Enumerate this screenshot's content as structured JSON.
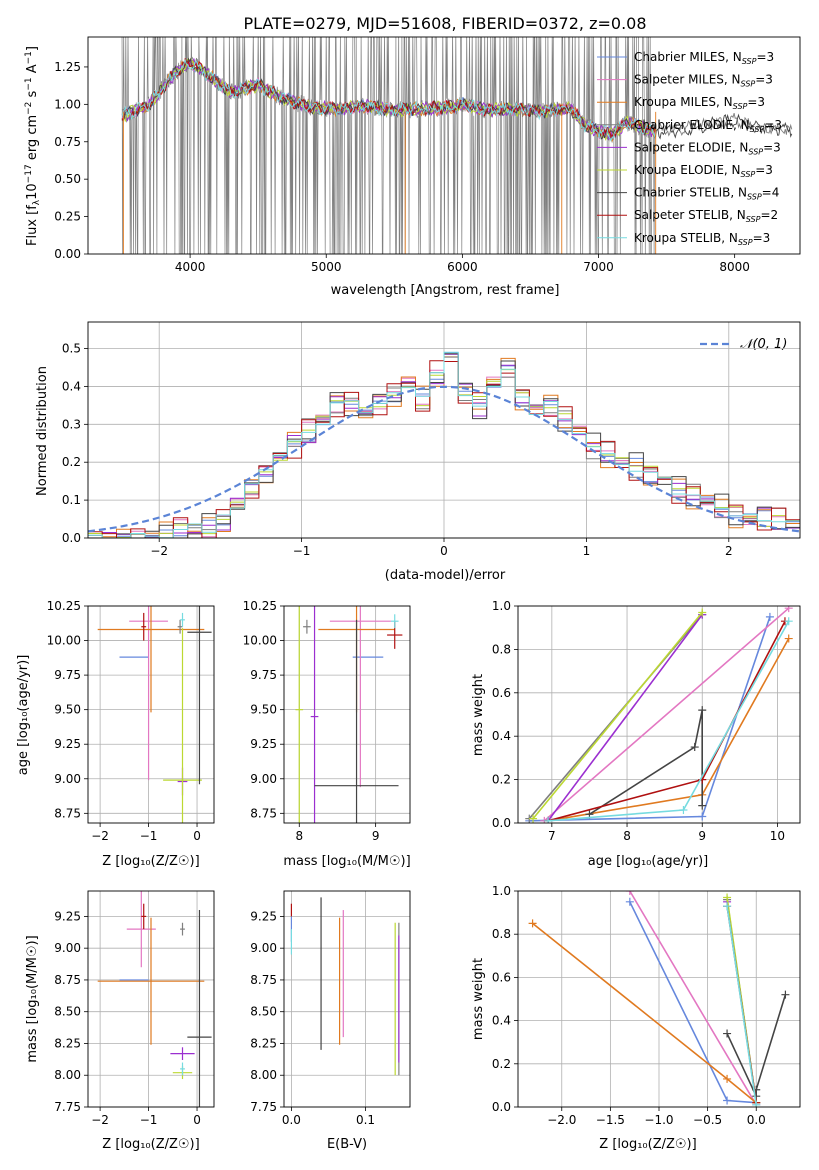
{
  "colors": {
    "chabrier_miles": "#6688dd",
    "salpeter_miles": "#e377c2",
    "kroupa_miles": "#e07a20",
    "chabrier_elodie": "#7f7f7f",
    "salpeter_elodie": "#9b2fd0",
    "kroupa_elodie": "#bcd832",
    "chabrier_stelib": "#444444",
    "salpeter_stelib": "#b01010",
    "kroupa_stelib": "#76dbe0",
    "normal": "#5b84d6",
    "data_gray": "#808080"
  },
  "chart_data": [
    {
      "id": "spectrum",
      "type": "line",
      "title": "PLATE=0279, MJD=51608, FIBERID=0372, z=0.08",
      "xlabel": "wavelength [Angstrom, rest frame]",
      "ylabel": "Flux [f_λ10^−17 erg cm^−2 s^−1 A^−1]",
      "xlim": [
        3250,
        8480
      ],
      "ylim": [
        0,
        1.45
      ],
      "xticks": [
        "4000",
        "5000",
        "6000",
        "7000",
        "8000"
      ],
      "yticks": [
        "0.00",
        "0.25",
        "0.50",
        "0.75",
        "1.00",
        "1.25"
      ],
      "legend_loc": "right",
      "series": [
        {
          "name": "Chabrier MILES, N_SSP=3",
          "color_key": "chabrier_miles"
        },
        {
          "name": "Salpeter MILES, N_SSP=3",
          "color_key": "salpeter_miles"
        },
        {
          "name": "Kroupa MILES, N_SSP=3",
          "color_key": "kroupa_miles"
        },
        {
          "name": "Chabrier ELODIE, N_SSP=3",
          "color_key": "chabrier_elodie"
        },
        {
          "name": "Salpeter ELODIE, N_SSP=3",
          "color_key": "salpeter_elodie"
        },
        {
          "name": "Kroupa ELODIE, N_SSP=3",
          "color_key": "kroupa_elodie"
        },
        {
          "name": "Chabrier STELIB, N_SSP=4",
          "color_key": "chabrier_stelib"
        },
        {
          "name": "Salpeter STELIB, N_SSP=2",
          "color_key": "salpeter_stelib"
        },
        {
          "name": "Kroupa STELIB, N_SSP=3",
          "color_key": "kroupa_stelib"
        }
      ],
      "continuum": [
        [
          3500,
          0.92
        ],
        [
          3700,
          1.0
        ],
        [
          3900,
          1.22
        ],
        [
          4000,
          1.28
        ],
        [
          4100,
          1.22
        ],
        [
          4300,
          1.08
        ],
        [
          4500,
          1.13
        ],
        [
          4700,
          1.03
        ],
        [
          4900,
          0.98
        ],
        [
          5100,
          0.97
        ],
        [
          5300,
          0.99
        ],
        [
          5500,
          0.96
        ],
        [
          5700,
          0.97
        ],
        [
          5900,
          0.98
        ],
        [
          6000,
          1.0
        ],
        [
          6200,
          0.96
        ],
        [
          6400,
          0.97
        ],
        [
          6600,
          0.95
        ],
        [
          6800,
          0.97
        ],
        [
          6900,
          0.86
        ],
        [
          7000,
          0.82
        ],
        [
          7100,
          0.8
        ],
        [
          7200,
          0.88
        ],
        [
          7300,
          0.85
        ],
        [
          7400,
          0.82
        ],
        [
          7600,
          0.83
        ],
        [
          7800,
          0.86
        ],
        [
          8000,
          0.9
        ],
        [
          8200,
          0.84
        ],
        [
          8400,
          0.83
        ]
      ]
    },
    {
      "id": "residuals",
      "type": "line",
      "xlabel": "(data-model)/error",
      "ylabel": "Normed distribution",
      "xlim": [
        -2.5,
        2.5
      ],
      "ylim": [
        0,
        0.57
      ],
      "xticks": [
        "−2",
        "−1",
        "0",
        "1",
        "2"
      ],
      "yticks": [
        "0.0",
        "0.1",
        "0.2",
        "0.3",
        "0.4",
        "0.5"
      ],
      "legend": "𝒩(0, 1)",
      "legend_loc": "upper right",
      "hist_x": [
        -2.5,
        -2.4,
        -2.3,
        -2.2,
        -2.1,
        -2.0,
        -1.9,
        -1.8,
        -1.7,
        -1.6,
        -1.5,
        -1.4,
        -1.3,
        -1.2,
        -1.1,
        -1.0,
        -0.9,
        -0.8,
        -0.7,
        -0.6,
        -0.5,
        -0.4,
        -0.3,
        -0.2,
        -0.1,
        0.0,
        0.1,
        0.2,
        0.3,
        0.4,
        0.5,
        0.6,
        0.7,
        0.8,
        0.9,
        1.0,
        1.1,
        1.2,
        1.3,
        1.4,
        1.5,
        1.6,
        1.7,
        1.8,
        1.9,
        2.0,
        2.1,
        2.2,
        2.3,
        2.4
      ],
      "hist_y": [
        0.0,
        0.0,
        0.0,
        0.0,
        0.005,
        0.01,
        0.02,
        0.025,
        0.03,
        0.05,
        0.09,
        0.13,
        0.17,
        0.22,
        0.25,
        0.28,
        0.31,
        0.36,
        0.35,
        0.33,
        0.36,
        0.38,
        0.41,
        0.37,
        0.43,
        0.48,
        0.39,
        0.35,
        0.41,
        0.45,
        0.37,
        0.34,
        0.35,
        0.31,
        0.28,
        0.24,
        0.22,
        0.2,
        0.19,
        0.17,
        0.15,
        0.13,
        0.11,
        0.1,
        0.08,
        0.06,
        0.05,
        0.05,
        0.045,
        0.04
      ],
      "offsets": [
        0.01,
        -0.015,
        0.02,
        -0.02,
        0.015,
        -0.01,
        0.025,
        -0.025,
        0.0
      ]
    },
    {
      "id": "age_vs_z",
      "type": "scatter",
      "xlabel": "Z [log₁₀(Z/Z☉)]",
      "ylabel": "age  [log₁₀(age/yr)]",
      "xlim": [
        -2.25,
        0.35
      ],
      "ylim": [
        8.68,
        10.25
      ],
      "xticks": [
        "−2",
        "−1",
        "0"
      ],
      "yticks": [
        "8.75",
        "9.00",
        "9.25",
        "9.50",
        "9.75",
        "10.00",
        "10.25"
      ],
      "errorbars": [
        {
          "c": "chabrier_miles",
          "x": -1.3,
          "y": 9.88,
          "dx": 0.3,
          "dy": 0.0
        },
        {
          "c": "salpeter_miles",
          "x": -1.0,
          "y": 10.14,
          "dx": 0.4,
          "dy": 1.15
        },
        {
          "c": "kroupa_miles",
          "x": -0.95,
          "y": 10.08,
          "dx": 1.1,
          "dy": 0.6
        },
        {
          "c": "chabrier_elodie",
          "x": -0.35,
          "y": 10.1,
          "dx": 0.05,
          "dy": 0.05
        },
        {
          "c": "salpeter_elodie",
          "x": -0.3,
          "y": 8.98,
          "dx": 0.1,
          "dy": 0.1
        },
        {
          "c": "kroupa_elodie",
          "x": -0.3,
          "y": 8.99,
          "dx": 0.4,
          "dy": 1.1
        },
        {
          "c": "chabrier_stelib",
          "x": 0.05,
          "y": 10.06,
          "dx": 0.25,
          "dy": 1.1
        },
        {
          "c": "salpeter_stelib",
          "x": -1.1,
          "y": 10.1,
          "dx": 0.05,
          "dy": 0.1
        },
        {
          "c": "kroupa_stelib",
          "x": -0.3,
          "y": 10.15,
          "dx": 0.05,
          "dy": 0.05
        }
      ]
    },
    {
      "id": "age_vs_mass",
      "type": "scatter",
      "xlabel": "mass [log₁₀(M/M☉)]",
      "xlim": [
        7.8,
        9.45
      ],
      "ylim": [
        8.68,
        10.25
      ],
      "xticks": [
        "8",
        "9"
      ],
      "yticks": [
        "8.75",
        "9.00",
        "9.25",
        "9.50",
        "9.75",
        "10.00",
        "10.25"
      ],
      "errorbars": [
        {
          "c": "chabrier_miles",
          "x": 8.9,
          "y": 9.88,
          "dx": 0.2,
          "dy": 0.0
        },
        {
          "c": "salpeter_miles",
          "x": 8.8,
          "y": 10.14,
          "dx": 0.4,
          "dy": 1.2
        },
        {
          "c": "kroupa_miles",
          "x": 8.75,
          "y": 10.08,
          "dx": 0.5,
          "dy": 0.6
        },
        {
          "c": "chabrier_elodie",
          "x": 8.1,
          "y": 10.1,
          "dx": 0.05,
          "dy": 0.05
        },
        {
          "c": "salpeter_elodie",
          "x": 8.2,
          "y": 9.45,
          "dx": 0.05,
          "dy": 1.0
        },
        {
          "c": "kroupa_elodie",
          "x": 8.0,
          "y": 9.5,
          "dx": 0.05,
          "dy": 1.0
        },
        {
          "c": "chabrier_stelib",
          "x": 8.75,
          "y": 8.95,
          "dx": 0.55,
          "dy": 1.2
        },
        {
          "c": "salpeter_stelib",
          "x": 9.25,
          "y": 10.04,
          "dx": 0.1,
          "dy": 0.1
        },
        {
          "c": "kroupa_stelib",
          "x": 9.25,
          "y": 10.14,
          "dx": 0.05,
          "dy": 0.05
        }
      ]
    },
    {
      "id": "weight_vs_age",
      "type": "line",
      "xlabel": "age  [log₁₀(age/yr)]",
      "ylabel": "mass weight",
      "xlim": [
        6.55,
        10.3
      ],
      "ylim": [
        0,
        1.0
      ],
      "xticks": [
        "7",
        "8",
        "9",
        "10"
      ],
      "yticks": [
        "0.0",
        "0.2",
        "0.4",
        "0.6",
        "0.8",
        "1.0"
      ],
      "lines": [
        {
          "c": "chabrier_miles",
          "x": [
            6.7,
            9.0,
            9.9
          ],
          "y": [
            0.01,
            0.03,
            0.95
          ]
        },
        {
          "c": "salpeter_miles",
          "x": [
            6.9,
            10.15
          ],
          "y": [
            0.01,
            0.99
          ]
        },
        {
          "c": "kroupa_miles",
          "x": [
            6.95,
            9.0,
            10.15
          ],
          "y": [
            0.01,
            0.13,
            0.85
          ]
        },
        {
          "c": "chabrier_elodie",
          "x": [
            6.7,
            9.0
          ],
          "y": [
            0.02,
            0.96
          ]
        },
        {
          "c": "salpeter_elodie",
          "x": [
            6.95,
            9.0
          ],
          "y": [
            0.01,
            0.96
          ]
        },
        {
          "c": "kroupa_elodie",
          "x": [
            6.75,
            9.0
          ],
          "y": [
            0.02,
            0.97
          ]
        },
        {
          "c": "chabrier_stelib",
          "x": [
            7.5,
            8.9,
            9.0,
            9.0
          ],
          "y": [
            0.04,
            0.35,
            0.52,
            0.08
          ]
        },
        {
          "c": "salpeter_stelib",
          "x": [
            6.95,
            9.0,
            10.1
          ],
          "y": [
            0.01,
            0.2,
            0.93
          ]
        },
        {
          "c": "kroupa_stelib",
          "x": [
            6.95,
            8.75,
            10.15
          ],
          "y": [
            0.01,
            0.06,
            0.93
          ]
        }
      ]
    },
    {
      "id": "mass_vs_z",
      "type": "scatter",
      "xlabel": "Z [log₁₀(Z/Z☉)]",
      "ylabel": "mass [log₁₀(M/M☉)]",
      "xlim": [
        -2.25,
        0.35
      ],
      "ylim": [
        7.75,
        9.45
      ],
      "xticks": [
        "−2",
        "−1",
        "0"
      ],
      "yticks": [
        "7.75",
        "8.00",
        "8.25",
        "8.50",
        "8.75",
        "9.00",
        "9.25"
      ],
      "errorbars": [
        {
          "c": "chabrier_miles",
          "x": -1.3,
          "y": 8.75,
          "dx": 0.3,
          "dy": 0.0
        },
        {
          "c": "salpeter_miles",
          "x": -1.15,
          "y": 9.15,
          "dx": 0.3,
          "dy": 0.3
        },
        {
          "c": "kroupa_miles",
          "x": -0.95,
          "y": 8.74,
          "dx": 1.1,
          "dy": 0.5
        },
        {
          "c": "chabrier_elodie",
          "x": -0.3,
          "y": 9.15,
          "dx": 0.05,
          "dy": 0.05
        },
        {
          "c": "salpeter_elodie",
          "x": -0.3,
          "y": 8.17,
          "dx": 0.25,
          "dy": 0.05
        },
        {
          "c": "kroupa_elodie",
          "x": -0.3,
          "y": 8.02,
          "dx": 0.2,
          "dy": 0.05
        },
        {
          "c": "chabrier_stelib",
          "x": 0.05,
          "y": 8.3,
          "dx": 0.25,
          "dy": 1.0
        },
        {
          "c": "salpeter_stelib",
          "x": -1.1,
          "y": 9.25,
          "dx": 0.05,
          "dy": 0.1
        },
        {
          "c": "kroupa_stelib",
          "x": -0.3,
          "y": 8.05,
          "dx": 0.05,
          "dy": 0.05
        }
      ]
    },
    {
      "id": "mass_vs_ebv",
      "type": "scatter",
      "xlabel": "E(B-V)",
      "xlim": [
        -0.01,
        0.16
      ],
      "ylim": [
        7.75,
        9.45
      ],
      "xticks": [
        "0.0",
        "0.1"
      ],
      "yticks": [
        "7.75",
        "8.00",
        "8.25",
        "8.50",
        "8.75",
        "9.00",
        "9.25"
      ],
      "errorbars": [
        {
          "c": "chabrier_miles",
          "x": 0.0,
          "y": 9.15,
          "dx": 0.0,
          "dy": 0.1
        },
        {
          "c": "salpeter_miles",
          "x": 0.07,
          "y": 8.8,
          "dx": 0.0,
          "dy": 0.5
        },
        {
          "c": "kroupa_miles",
          "x": 0.065,
          "y": 8.74,
          "dx": 0.0,
          "dy": 0.5
        },
        {
          "c": "chabrier_elodie",
          "x": 0.145,
          "y": 8.6,
          "dx": 0.0,
          "dy": 0.6
        },
        {
          "c": "salpeter_elodie",
          "x": 0.145,
          "y": 8.6,
          "dx": 0.0,
          "dy": 0.5
        },
        {
          "c": "kroupa_elodie",
          "x": 0.14,
          "y": 8.6,
          "dx": 0.0,
          "dy": 0.6
        },
        {
          "c": "chabrier_stelib",
          "x": 0.04,
          "y": 8.8,
          "dx": 0.0,
          "dy": 0.6
        },
        {
          "c": "salpeter_stelib",
          "x": 0.0,
          "y": 9.3,
          "dx": 0.0,
          "dy": 0.05
        },
        {
          "c": "kroupa_stelib",
          "x": 0.0,
          "y": 9.05,
          "dx": 0.0,
          "dy": 0.1
        }
      ]
    },
    {
      "id": "weight_vs_z",
      "type": "line",
      "xlabel": "Z [log₁₀(Z/Z☉)]",
      "ylabel": "mass weight",
      "xlim": [
        -2.45,
        0.45
      ],
      "ylim": [
        0,
        1.0
      ],
      "xticks": [
        "−2.0",
        "−1.5",
        "−1.0",
        "−0.5",
        "0.0"
      ],
      "yticks": [
        "0.0",
        "0.2",
        "0.4",
        "0.6",
        "0.8",
        "1.0"
      ],
      "lines": [
        {
          "c": "chabrier_miles",
          "x": [
            -1.3,
            -0.3,
            0.0
          ],
          "y": [
            0.95,
            0.03,
            0.02
          ]
        },
        {
          "c": "salpeter_miles",
          "x": [
            -1.3,
            0.0
          ],
          "y": [
            1.0,
            0.01
          ]
        },
        {
          "c": "kroupa_miles",
          "x": [
            -2.3,
            -0.3,
            0.0
          ],
          "y": [
            0.85,
            0.13,
            0.02
          ]
        },
        {
          "c": "chabrier_elodie",
          "x": [
            -0.3,
            0.0
          ],
          "y": [
            0.96,
            0.02
          ]
        },
        {
          "c": "salpeter_elodie",
          "x": [
            -0.3,
            0.0
          ],
          "y": [
            0.95,
            0.02
          ]
        },
        {
          "c": "kroupa_elodie",
          "x": [
            -0.3,
            0.0
          ],
          "y": [
            0.97,
            0.02
          ]
        },
        {
          "c": "chabrier_stelib",
          "x": [
            -0.3,
            0.0,
            0.0,
            0.3
          ],
          "y": [
            0.34,
            0.05,
            0.08,
            0.52
          ]
        },
        {
          "c": "salpeter_stelib",
          "x": [
            -0.3,
            0.0
          ],
          "y": [
            0.93,
            0.02
          ]
        },
        {
          "c": "kroupa_stelib",
          "x": [
            -0.3,
            0.0
          ],
          "y": [
            0.93,
            0.01
          ]
        }
      ]
    }
  ]
}
